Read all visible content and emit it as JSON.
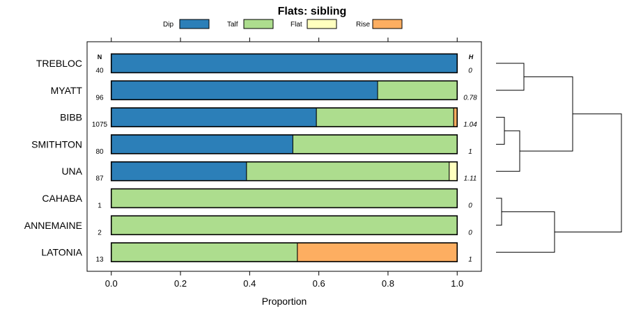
{
  "chart_data": {
    "type": "bar",
    "orientation": "horizontal",
    "stacked": true,
    "title": "Flats: sibling",
    "xlabel": "Proportion",
    "ylabel": "",
    "xlim": [
      -0.07,
      1.07
    ],
    "x_ticks": [
      0.0,
      0.2,
      0.4,
      0.6,
      0.8,
      1.0
    ],
    "x_tick_labels": [
      "0.0",
      "0.2",
      "0.4",
      "0.6",
      "0.8",
      "1.0"
    ],
    "legend_position": "top",
    "n_header": "N",
    "h_header": "H",
    "categories": [
      "TREBLOC",
      "MYATT",
      "BIBB",
      "SMITHTON",
      "UNA",
      "CAHABA",
      "ANNEMAINE",
      "LATONIA"
    ],
    "n_values": [
      "40",
      "96",
      "1075",
      "80",
      "87",
      "1",
      "2",
      "13"
    ],
    "h_values": [
      "0",
      "0.78",
      "1.04",
      "1",
      "1.11",
      "0",
      "0",
      "1"
    ],
    "series": [
      {
        "name": "Dip",
        "color": "#2c7fb8",
        "values": [
          1.0,
          0.77,
          0.593,
          0.525,
          0.391,
          0.0,
          0.0,
          0.0
        ]
      },
      {
        "name": "Talf",
        "color": "#addd8e",
        "values": [
          0.0,
          0.23,
          0.397,
          0.475,
          0.586,
          1.0,
          1.0,
          0.538
        ]
      },
      {
        "name": "Flat",
        "color": "#ffffbf",
        "values": [
          0.0,
          0.0,
          0.0,
          0.0,
          0.023,
          0.0,
          0.0,
          0.0
        ]
      },
      {
        "name": "Rise",
        "color": "#fdae61",
        "values": [
          0.0,
          0.0,
          0.01,
          0.0,
          0.0,
          0.0,
          0.0,
          0.462
        ]
      }
    ],
    "dendrogram": {
      "leaves": [
        "TREBLOC",
        "MYATT",
        "BIBB",
        "SMITHTON",
        "UNA",
        "CAHABA",
        "ANNEMAINE",
        "LATONIA"
      ],
      "merges": [
        {
          "left": "leaf:0",
          "right": "leaf:1",
          "height": 0.2
        },
        {
          "left": "leaf:2",
          "right": "leaf:3",
          "height": 0.06
        },
        {
          "left": "node:1",
          "right": "leaf:4",
          "height": 0.17
        },
        {
          "left": "node:0",
          "right": "node:2",
          "height": 0.55
        },
        {
          "left": "leaf:5",
          "right": "leaf:6",
          "height": 0.04
        },
        {
          "left": "node:4",
          "right": "leaf:7",
          "height": 0.42
        },
        {
          "left": "node:3",
          "right": "node:5",
          "height": 0.9
        }
      ]
    }
  }
}
